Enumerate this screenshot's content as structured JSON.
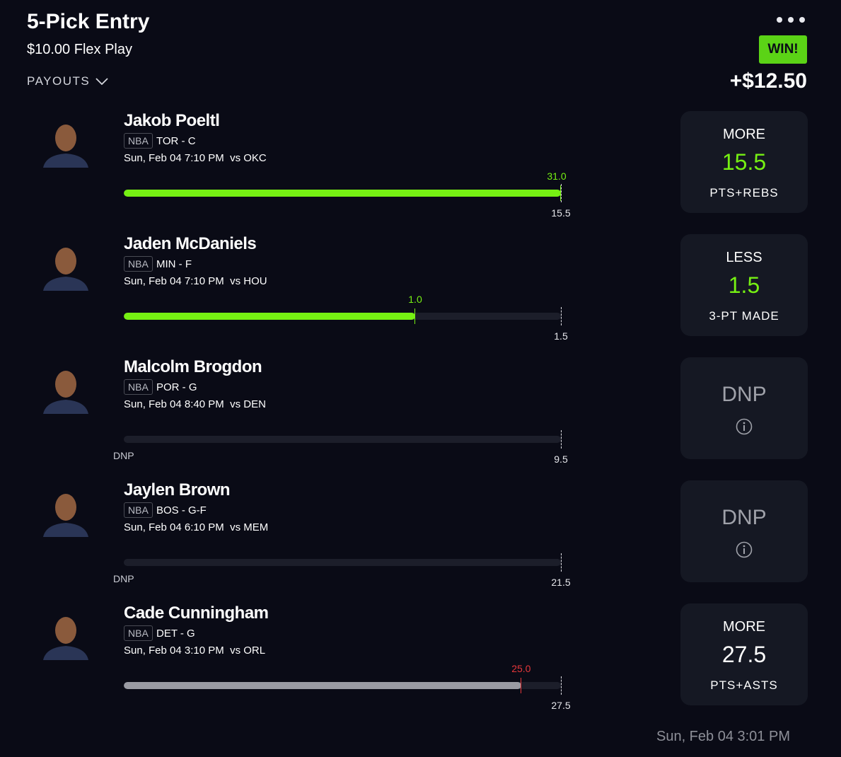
{
  "header": {
    "title": "5-Pick Entry",
    "subtitle": "$10.00 Flex Play",
    "payouts": "PAYOUTS",
    "result": "WIN!",
    "winnings": "+$12.50"
  },
  "picks": [
    {
      "name": "Jakob Poeltl",
      "league": "NBA",
      "team": "TOR - C",
      "game": "Sun, Feb 04 7:10 PM  vs OKC",
      "actual": "31.0",
      "line": "15.5",
      "direction": "MORE",
      "stat": "PTS+REBS",
      "bar_color": "#76f013",
      "actual_color": "#76f013",
      "line_color": "#76f013"
    },
    {
      "name": "Jaden McDaniels",
      "league": "NBA",
      "team": "MIN - F",
      "game": "Sun, Feb 04 7:10 PM  vs HOU",
      "actual": "1.0",
      "line": "1.5",
      "direction": "LESS",
      "stat": "3-PT MADE",
      "bar_color": "#76f013",
      "actual_color": "#76f013",
      "line_color": "#76f013"
    },
    {
      "name": "Malcolm Brogdon",
      "league": "NBA",
      "team": "POR - G",
      "game": "Sun, Feb 04 8:40 PM  vs DEN",
      "status": "DNP",
      "line": "9.5",
      "card": "DNP"
    },
    {
      "name": "Jaylen Brown",
      "league": "NBA",
      "team": "BOS - G-F",
      "game": "Sun, Feb 04 6:10 PM  vs MEM",
      "status": "DNP",
      "line": "21.5",
      "card": "DNP"
    },
    {
      "name": "Cade Cunningham",
      "league": "NBA",
      "team": "DET - G",
      "game": "Sun, Feb 04 3:10 PM  vs ORL",
      "actual": "25.0",
      "line": "27.5",
      "direction": "MORE",
      "stat": "PTS+ASTS",
      "bar_color": "#9a9ba3",
      "actual_color": "#e5373a",
      "line_color": "#ffffff"
    }
  ],
  "footer": {
    "timestamp": "Sun, Feb 04 3:01 PM"
  }
}
